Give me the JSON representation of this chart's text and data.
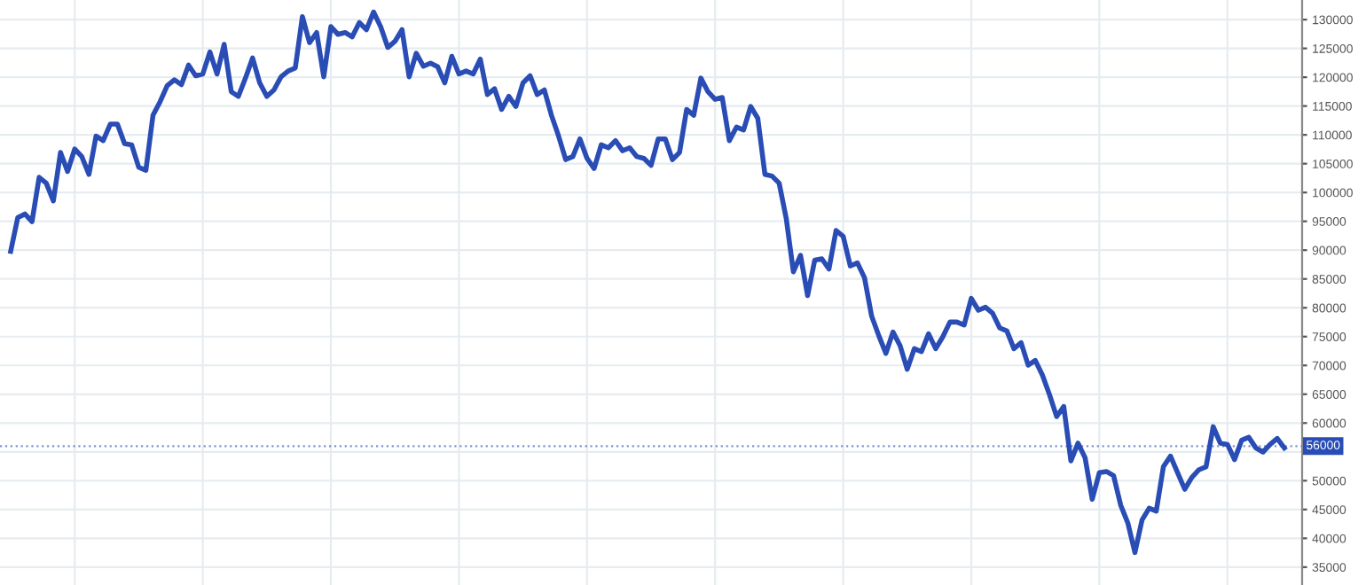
{
  "chart_data": {
    "type": "line",
    "categories": [
      null,
      null,
      null,
      null,
      null,
      null,
      null,
      null,
      null,
      null,
      null,
      null,
      null,
      null,
      null,
      null,
      null,
      null,
      null,
      null,
      null,
      null,
      null,
      null,
      null,
      null,
      null,
      null,
      null,
      null,
      null,
      null,
      null,
      null,
      null,
      null,
      null,
      null,
      null,
      null,
      null,
      null,
      null,
      null,
      null,
      null,
      null,
      null,
      null,
      null,
      null,
      null,
      null,
      null,
      null,
      null,
      null,
      null,
      null,
      null,
      null,
      null,
      null,
      null,
      null,
      null,
      null,
      null,
      null,
      null,
      null,
      null,
      null,
      null,
      null,
      null,
      null,
      null,
      null,
      null,
      null,
      null,
      null,
      null,
      null,
      null,
      null,
      null,
      null,
      null,
      null,
      null,
      null,
      null,
      null,
      null,
      null,
      null,
      null,
      null,
      null,
      null,
      null,
      null,
      null,
      null,
      null,
      null,
      null,
      null,
      null,
      null,
      null,
      null,
      null,
      null,
      null,
      null,
      null,
      null,
      null,
      null,
      null,
      null,
      null,
      null,
      null,
      null,
      null,
      null,
      null,
      null,
      null,
      null,
      null,
      null,
      null,
      null,
      null,
      null,
      null,
      null,
      null,
      null,
      null,
      null,
      null,
      null,
      null,
      null,
      null,
      null,
      null,
      null,
      null,
      null,
      null,
      null,
      null,
      null,
      null,
      null,
      null,
      null,
      null,
      null,
      null,
      null,
      null,
      null,
      null,
      null,
      null,
      null,
      null,
      null,
      null,
      null,
      null,
      null
    ],
    "series": [
      {
        "color": "#2a4db5",
        "values": [
          89800,
          95650,
          96270,
          94950,
          102630,
          101620,
          98540,
          106940,
          103650,
          107550,
          106230,
          103150,
          109800,
          109000,
          111860,
          111860,
          108480,
          108270,
          104370,
          103860,
          113400,
          115760,
          118530,
          119550,
          118710,
          122100,
          120250,
          120560,
          124370,
          120560,
          125700,
          117490,
          116680,
          119850,
          123330,
          119020,
          116680,
          117790,
          120070,
          121080,
          121600,
          130520,
          126000,
          127750,
          120070,
          128770,
          127440,
          127750,
          127010,
          129480,
          128250,
          131320,
          128770,
          125170,
          126220,
          128250,
          120070,
          124160,
          121910,
          122450,
          121830,
          119020,
          123640,
          120560,
          121080,
          120560,
          123140,
          116990,
          118010,
          114410,
          116680,
          114930,
          119020,
          120250,
          116990,
          117790,
          113400,
          109800,
          105710,
          106230,
          109300,
          105920,
          104170,
          108270,
          107760,
          109000,
          107250,
          107760,
          106230,
          105920,
          104700,
          109300,
          109300,
          105710,
          106940,
          114410,
          113400,
          119850,
          117490,
          116170,
          116480,
          109000,
          111340,
          110840,
          114930,
          112870,
          103150,
          102850,
          101620,
          95470,
          86240,
          89100,
          82120,
          88270,
          88490,
          86730,
          93410,
          92390,
          87260,
          87780,
          85200,
          78550,
          75170,
          72100,
          75790,
          73420,
          69320,
          72900,
          72390,
          75480,
          72900,
          74960,
          77520,
          77520,
          77000,
          81630,
          79570,
          80090,
          79050,
          76490,
          75980,
          72900,
          73940,
          70040,
          70860,
          68310,
          64900,
          61120,
          62870,
          53430,
          56510,
          53960,
          46760,
          51380,
          51590,
          50880,
          45750,
          42670,
          37540,
          43190,
          45220,
          44730,
          52420,
          54260,
          51380,
          48510,
          50570,
          51900,
          52420,
          59370,
          56510,
          56290,
          53650,
          57030,
          57520,
          55680,
          54970,
          56290,
          57340,
          55680
        ]
      }
    ],
    "ylim": [
      31900,
      133400
    ],
    "yticks": [
      35000,
      40000,
      45000,
      50000,
      {
        "value": 55000,
        "label": null
      },
      60000,
      65000,
      70000,
      75000,
      80000,
      85000,
      90000,
      95000,
      100000,
      105000,
      110000,
      115000,
      120000,
      125000,
      130000
    ],
    "tick_labels": "y",
    "grid": true,
    "marker": "none",
    "line_style": "solid",
    "ref_lines": [
      {
        "axis": "y",
        "value": 56000,
        "label": "56000",
        "color": "#2a4db5",
        "line_style": "dotted"
      }
    ]
  }
}
